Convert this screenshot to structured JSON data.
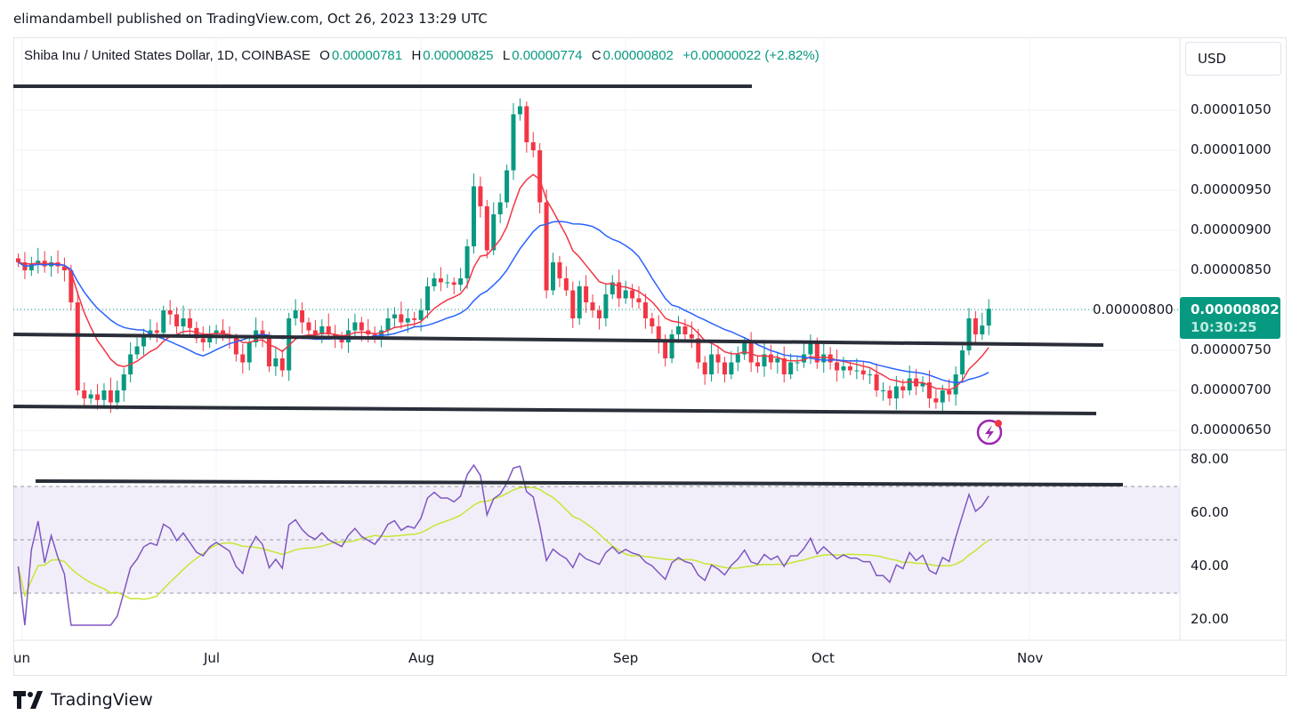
{
  "publisher_line": "elimandambell published on TradingView.com, Oct 26, 2023 13:29 UTC",
  "legend": {
    "symbol": "Shiba Inu / United States Dollar, 1D, COINBASE",
    "o_label": "O",
    "o": "0.00000781",
    "h_label": "H",
    "h": "0.00000825",
    "l_label": "L",
    "l": "0.00000774",
    "c_label": "C",
    "c": "0.00000802",
    "change": "+0.00000022 (+2.82%)"
  },
  "currency_button": "USD",
  "last_price": {
    "value": "0.00000802",
    "countdown": "10:30:25"
  },
  "price_axis": [
    "0.00001050",
    "0.00001000",
    "0.00000950",
    "0.00000900",
    "0.00000850",
    "0.00000800",
    "0.00000750",
    "0.00000700",
    "0.00000650"
  ],
  "rsi_axis": [
    "80.00",
    "60.00",
    "40.00",
    "20.00"
  ],
  "time_axis": [
    "un",
    "Jul",
    "Aug",
    "Sep",
    "Oct",
    "Nov"
  ],
  "footer": {
    "brand": "TradingView"
  },
  "colors": {
    "up": "#089981",
    "down": "#f23645",
    "ema": "#f23645",
    "sma": "#2962ff",
    "rsi": "#7e57c2",
    "rsi_ma": "#c6e633"
  },
  "chart_data": {
    "type": "candlestick",
    "title": "Shiba Inu / United States Dollar, 1D, COINBASE",
    "unit": "1e-8 USD",
    "start_date": "2023-06-01",
    "end_date": "2023-10-26",
    "ylim": [
      620,
      1100
    ],
    "rsi_ylim": [
      15,
      85
    ],
    "rsi_bands": [
      30,
      50,
      70
    ],
    "closes": [
      860,
      850,
      858,
      862,
      855,
      860,
      855,
      850,
      810,
      700,
      690,
      695,
      688,
      700,
      685,
      700,
      720,
      745,
      755,
      770,
      775,
      772,
      800,
      795,
      780,
      790,
      778,
      765,
      760,
      770,
      775,
      770,
      765,
      745,
      735,
      760,
      775,
      765,
      730,
      740,
      725,
      790,
      800,
      785,
      775,
      770,
      780,
      770,
      765,
      760,
      775,
      785,
      775,
      770,
      765,
      775,
      790,
      795,
      785,
      790,
      788,
      800,
      830,
      840,
      835,
      835,
      832,
      840,
      880,
      955,
      930,
      875,
      920,
      935,
      975,
      1045,
      1055,
      1010,
      1000,
      935,
      825,
      860,
      840,
      825,
      790,
      830,
      810,
      800,
      790,
      820,
      835,
      815,
      825,
      815,
      810,
      790,
      780,
      760,
      740,
      770,
      780,
      770,
      765,
      735,
      720,
      745,
      735,
      720,
      735,
      745,
      760,
      735,
      730,
      745,
      735,
      740,
      720,
      735,
      735,
      745,
      760,
      735,
      745,
      735,
      725,
      730,
      725,
      725,
      720,
      720,
      700,
      700,
      690,
      705,
      700,
      715,
      705,
      710,
      690,
      685,
      700,
      695,
      720,
      750,
      790,
      770,
      781,
      802
    ],
    "indicators": [
      "EMA (red)",
      "SMA (blue)",
      "RSI 14 (purple)",
      "RSI MA (yellow-green)"
    ]
  }
}
